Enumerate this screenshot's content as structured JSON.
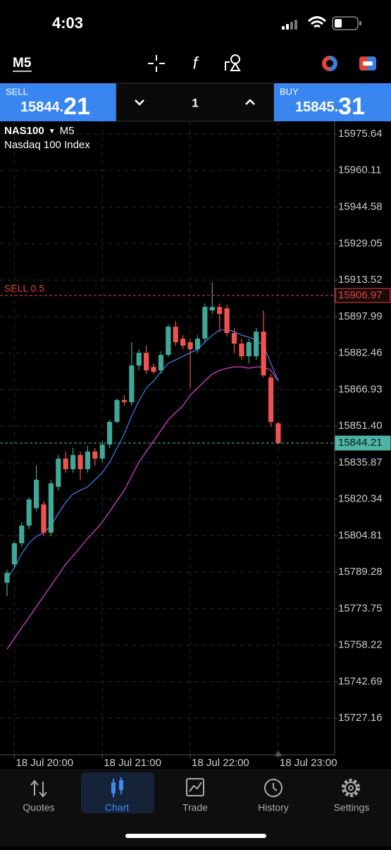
{
  "status_bar": {
    "time": "4:03"
  },
  "toolbar": {
    "timeframe": "M5"
  },
  "trade_panel": {
    "sell": {
      "label": "SELL",
      "price": "15844.",
      "pips": "21"
    },
    "volume": "1",
    "buy": {
      "label": "BUY",
      "price": "15845.",
      "pips": "31"
    }
  },
  "chart_data": {
    "type": "candlestick",
    "symbol": "NAS100",
    "timeframe": "M5",
    "description": "Nasdaq 100 Index",
    "up_color": "#3fa898",
    "down_color": "#ef5350",
    "open": [
      15784.8,
      15792.6,
      15801.6,
      15809.1,
      15816.6,
      15818.1,
      15806.1,
      15825.6,
      15837.6,
      15833.1,
      15839.1,
      15833.1,
      15840.6,
      15837.6,
      15843.6,
      15853.2,
      15862.5,
      15861.6,
      15877.2,
      15882.6,
      15876.6,
      15875.1,
      15881.7,
      15893.7,
      15888.6,
      15887.1,
      15884.1,
      15888.6,
      15900.6,
      15902.1,
      15901.5,
      15891.0,
      15886.5,
      15881.1,
      15881.1,
      15891.6,
      15872.1,
      15852.6
    ],
    "high": [
      15790.2,
      15802.2,
      15810.6,
      15821.1,
      15834.6,
      15819.6,
      15828.6,
      15839.1,
      15840.6,
      15842.1,
      15840.6,
      15843.0,
      15842.1,
      15845.1,
      15854.1,
      15863.1,
      15864.6,
      15887.1,
      15884.1,
      15885.6,
      15878.1,
      15883.2,
      15894.6,
      15896.1,
      15890.1,
      15888.6,
      15890.1,
      15903.6,
      15912.6,
      15903.6,
      15903.0,
      15893.1,
      15888.6,
      15888.6,
      15893.1,
      15900.6,
      15873.6,
      15853.2
    ],
    "low": [
      15779.1,
      15791.1,
      15800.1,
      15807.6,
      15815.1,
      15804.6,
      15804.6,
      15824.1,
      15831.6,
      15831.6,
      15828.6,
      15831.6,
      15834.6,
      15836.1,
      15842.1,
      15852.6,
      15860.1,
      15860.1,
      15875.1,
      15873.6,
      15873.6,
      15873.6,
      15880.8,
      15885.6,
      15884.1,
      15867.6,
      15882.6,
      15887.1,
      15899.1,
      15891.6,
      15889.5,
      15882.6,
      15879.6,
      15878.1,
      15879.6,
      15872.1,
      15851.1,
      15843.6
    ],
    "close": [
      15789.0,
      15801.6,
      15809.1,
      15820.2,
      15828.6,
      15806.1,
      15827.1,
      15837.6,
      15833.1,
      15839.1,
      15833.1,
      15840.6,
      15837.6,
      15843.6,
      15853.2,
      15862.5,
      15861.6,
      15877.2,
      15882.6,
      15875.1,
      15874.5,
      15881.7,
      15893.7,
      15887.1,
      15885.6,
      15884.1,
      15888.6,
      15902.1,
      15902.1,
      15899.1,
      15891.0,
      15886.5,
      15881.1,
      15887.1,
      15891.6,
      15873.0,
      15853.2,
      15844.21
    ],
    "series": [
      {
        "color": "#3b7ddd",
        "values": [
          15786.6,
          15791.1,
          15797.1,
          15801.6,
          15804.6,
          15806.1,
          15809.1,
          15814.2,
          15819.0,
          15822.6,
          15824.1,
          15825.6,
          15828.6,
          15831.6,
          15836.1,
          15842.1,
          15848.1,
          15855.6,
          15862.2,
          15867.6,
          15870.6,
          15874.5,
          15878.1,
          15879.6,
          15881.1,
          15882.6,
          15884.1,
          15887.1,
          15890.1,
          15892.2,
          15892.5,
          15891.6,
          15890.1,
          15889.2,
          15888.0,
          15885.6,
          15878.1,
          15870.6
        ]
      },
      {
        "color": "#d63fd0",
        "values": [
          15756.6,
          15761.1,
          15765.6,
          15770.1,
          15774.6,
          15779.1,
          15783.6,
          15788.1,
          15792.6,
          15796.2,
          15799.8,
          15803.7,
          15807.0,
          15810.6,
          15815.1,
          15819.6,
          15824.1,
          15830.1,
          15836.1,
          15840.6,
          15845.1,
          15849.6,
          15854.1,
          15857.1,
          15860.1,
          15864.6,
          15867.6,
          15870.6,
          15873.6,
          15875.1,
          15876.0,
          15876.6,
          15876.6,
          15876.0,
          15876.6,
          15876.6,
          15875.1,
          15870.6
        ]
      }
    ],
    "lines": [
      {
        "label": "SELL 0.5",
        "value": 15906.97,
        "color": "#e0453a"
      },
      {
        "value": 15844.21,
        "color": "#4fb3a6"
      }
    ],
    "xlim": [
      -0.96,
      44.7
    ],
    "xticks": [
      {
        "value": 1,
        "label": "18 Jul 20:00"
      },
      {
        "value": 13,
        "label": "18 Jul 21:00"
      },
      {
        "value": 25,
        "label": "18 Jul 22:00"
      },
      {
        "value": 37,
        "label": "18 Jul 23:00"
      }
    ],
    "ylim": [
      15711.64,
      15981.04
    ],
    "yticks": [
      15975.64,
      15960.11,
      15944.58,
      15929.05,
      15913.52,
      15897.99,
      15882.46,
      15866.93,
      {
        "value": 15851.4,
        "label": "15851.40"
      },
      15835.87,
      15820.34,
      15804.81,
      15789.28,
      15773.75,
      15758.22,
      15742.69,
      15727.16
    ],
    "grid": true
  },
  "tab_bar": {
    "tabs": [
      "Quotes",
      "Chart",
      "Trade",
      "History",
      "Settings"
    ]
  }
}
